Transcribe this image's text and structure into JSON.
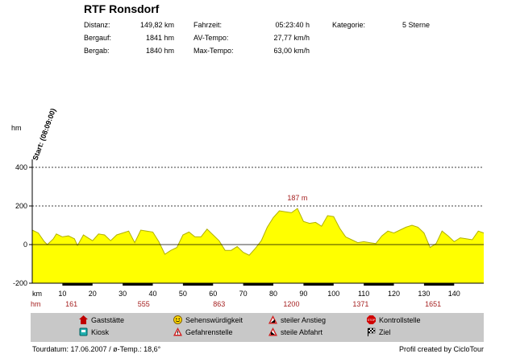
{
  "header": {
    "title": "RTF Ronsdorf",
    "stats": [
      {
        "label": "Distanz:",
        "value": "149,82 km"
      },
      {
        "label": "Bergauf:",
        "value": "1841 hm"
      },
      {
        "label": "Bergab:",
        "value": "1840 hm"
      },
      {
        "label": "Fahrzeit:",
        "value": "05:23:40 h"
      },
      {
        "label": "AV-Tempo:",
        "value": "27,77 km/h"
      },
      {
        "label": "Max-Tempo:",
        "value": "63,00 km/h"
      },
      {
        "label": "Kategorie:",
        "value": "5 Sterne"
      }
    ]
  },
  "chart_data": {
    "type": "area",
    "ylabel": "hm",
    "xlabel": "km",
    "ylim": [
      -200,
      400
    ],
    "xlim": [
      0,
      149.82
    ],
    "yticks": [
      -200,
      0,
      200,
      400
    ],
    "xticks": [
      10,
      20,
      30,
      40,
      50,
      60,
      70,
      80,
      90,
      100,
      110,
      120,
      130,
      140
    ],
    "start_label": "Start: (08:09:00)",
    "peak_annotation": "187 m",
    "peak_x": 88,
    "peak_value": 187,
    "hm_markers": [
      {
        "x": 13,
        "label": "161"
      },
      {
        "x": 37,
        "label": "555"
      },
      {
        "x": 62,
        "label": "863"
      },
      {
        "x": 86,
        "label": "1200"
      },
      {
        "x": 109,
        "label": "1371"
      },
      {
        "x": 133,
        "label": "1651"
      }
    ],
    "x": [
      0,
      2,
      4,
      5,
      7,
      8,
      10,
      12,
      14,
      15,
      17,
      18,
      20,
      22,
      24,
      26,
      28,
      30,
      32,
      34,
      36,
      38,
      40,
      42,
      44,
      46,
      48,
      50,
      52,
      54,
      56,
      58,
      60,
      62,
      64,
      66,
      68,
      70,
      72,
      74,
      76,
      78,
      80,
      82,
      84,
      86,
      88,
      90,
      92,
      94,
      96,
      98,
      100,
      102,
      104,
      106,
      108,
      110,
      112,
      114,
      116,
      118,
      120,
      122,
      124,
      126,
      128,
      130,
      132,
      134,
      136,
      138,
      140,
      142,
      144,
      146,
      148,
      149.82
    ],
    "values": [
      75,
      60,
      15,
      0,
      30,
      55,
      40,
      45,
      30,
      -5,
      50,
      40,
      20,
      55,
      50,
      20,
      50,
      60,
      70,
      10,
      75,
      70,
      65,
      15,
      -50,
      -30,
      -15,
      50,
      65,
      40,
      40,
      80,
      50,
      20,
      -30,
      -30,
      -10,
      -40,
      -55,
      -20,
      20,
      90,
      140,
      175,
      170,
      165,
      187,
      120,
      110,
      115,
      95,
      150,
      145,
      85,
      40,
      25,
      10,
      15,
      10,
      5,
      45,
      70,
      60,
      75,
      90,
      100,
      90,
      60,
      -15,
      5,
      70,
      45,
      15,
      35,
      30,
      25,
      70,
      60
    ],
    "axis_highlight_bands": [
      [
        10,
        20
      ],
      [
        30,
        40
      ],
      [
        50,
        60
      ],
      [
        70,
        80
      ],
      [
        90,
        100
      ],
      [
        110,
        120
      ],
      [
        130,
        140
      ]
    ],
    "colors": {
      "fill": "#ffff00",
      "stroke": "#b0b000",
      "marker": "#a52020",
      "grid": "#000000"
    },
    "grid": true
  },
  "legend": [
    {
      "icon": "house-icon",
      "label": "Gaststätte"
    },
    {
      "icon": "kiosk-icon",
      "label": "Kiosk"
    },
    {
      "icon": "smiley-icon",
      "label": "Sehenswürdigkeit"
    },
    {
      "icon": "warning-triangle-icon",
      "label": "Gefahrenstelle"
    },
    {
      "icon": "steep-climb-icon",
      "label": "steiler Anstieg"
    },
    {
      "icon": "steep-descent-icon",
      "label": "steile Abfahrt"
    },
    {
      "icon": "stop-sign-icon",
      "label": "Kontrollstelle",
      "stop_text": "STOP"
    },
    {
      "icon": "finish-flag-icon",
      "label": "Ziel"
    }
  ],
  "footer": {
    "left": "Tourdatum: 17.06.2007  /  ø-Temp.: 18,6°",
    "right": "Profil created by CicloTour"
  }
}
